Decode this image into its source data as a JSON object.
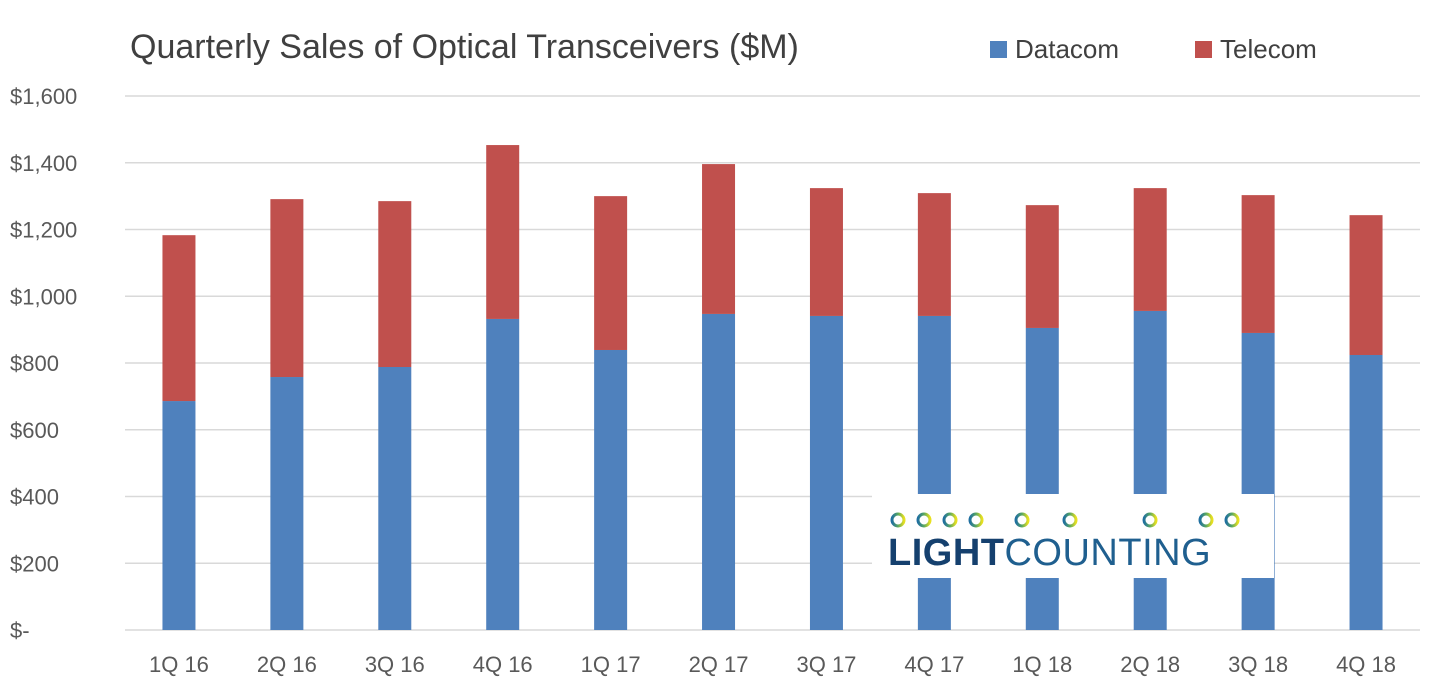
{
  "chart_data": {
    "type": "bar",
    "stacked": true,
    "title": "Quarterly Sales of Optical Transceivers ($M)",
    "xlabel": "",
    "ylabel": "",
    "ylim": [
      0,
      1600
    ],
    "yticks": [
      0,
      200,
      400,
      600,
      800,
      1000,
      1200,
      1400,
      1600
    ],
    "ytick_labels": [
      "$-",
      "$200",
      "$400",
      "$600",
      "$800",
      "$1,000",
      "$1,200",
      "$1,400",
      "$1,600"
    ],
    "grid": true,
    "legend": "top-right",
    "categories": [
      "1Q 16",
      "2Q 16",
      "3Q 16",
      "4Q 16",
      "1Q 17",
      "2Q 17",
      "3Q 17",
      "4Q 17",
      "1Q 18",
      "2Q 18",
      "3Q 18",
      "4Q 18"
    ],
    "series": [
      {
        "name": "Datacom",
        "color": "#4f81bd",
        "values": [
          686,
          758,
          788,
          932,
          839,
          947,
          941,
          941,
          905,
          956,
          890,
          824
        ]
      },
      {
        "name": "Telecom",
        "color": "#c0504d",
        "values": [
          497,
          533,
          497,
          521,
          461,
          449,
          383,
          368,
          368,
          368,
          413,
          419
        ]
      }
    ]
  },
  "logo": {
    "text_bold": "LIGHT",
    "text_light": "COUNTING"
  }
}
